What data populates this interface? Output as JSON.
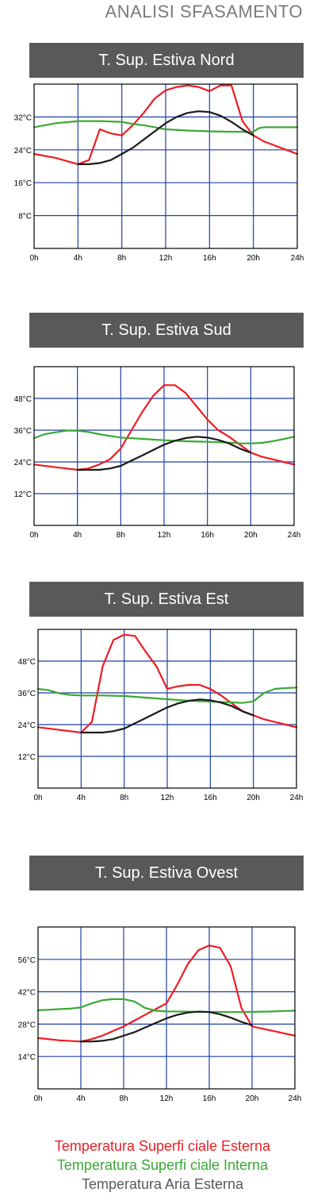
{
  "page_title": "ANALISI SFASAMENTO",
  "colors": {
    "surface_external": "#ee1c24",
    "surface_internal": "#3aa935",
    "air_external": "#1a1a1a",
    "grid": "#1f3fa8",
    "header_bg": "#58595b"
  },
  "chart_data": [
    {
      "type": "line",
      "title": "T. Sup. Estiva Nord",
      "x_tick_labels": [
        "0h",
        "4h",
        "8h",
        "12h",
        "16h",
        "20h",
        "24h"
      ],
      "xlim": [
        0,
        24
      ],
      "ylim": [
        0,
        40
      ],
      "y_tick_values": [
        8,
        16,
        24,
        32
      ],
      "y_tick_labels": [
        "8°C",
        "16°C",
        "24°C",
        "32°C"
      ],
      "grid": true,
      "series": [
        {
          "color": "#ee1c24",
          "x": [
            0,
            2,
            4,
            5,
            6,
            7,
            8,
            9,
            10,
            11,
            12,
            13,
            14,
            15,
            16,
            17,
            18,
            19,
            20,
            21,
            22,
            23,
            24
          ],
          "y": [
            23,
            22,
            20.5,
            21.5,
            29,
            28,
            27.5,
            30,
            33,
            36.5,
            38.5,
            39.3,
            39.7,
            39.3,
            38.3,
            39.7,
            39.7,
            31,
            27.5,
            26,
            25,
            24,
            23
          ]
        },
        {
          "color": "#3aa935",
          "x": [
            0,
            2,
            4,
            6,
            8,
            9,
            10,
            11,
            12,
            14,
            16,
            18,
            19,
            19.5,
            20,
            20.5,
            21,
            22,
            24
          ],
          "y": [
            29.5,
            30.5,
            31,
            31,
            30.8,
            30.3,
            30,
            29.5,
            29,
            28.7,
            28.5,
            28.4,
            28.4,
            28.3,
            28.4,
            29.3,
            29.5,
            29.5,
            29.5
          ]
        },
        {
          "color": "#1a1a1a",
          "x": [
            4,
            5,
            6,
            7,
            8,
            9,
            10,
            11,
            12,
            13,
            14,
            15,
            16,
            17,
            18,
            19,
            20
          ],
          "y": [
            20.5,
            20.5,
            20.8,
            21.5,
            23,
            24.5,
            26.5,
            28.5,
            30.5,
            32,
            33,
            33.4,
            33.2,
            32.3,
            30.8,
            29,
            27.5
          ]
        }
      ]
    },
    {
      "type": "line",
      "title": "T. Sup. Estiva Sud",
      "x_tick_labels": [
        "0h",
        "4h",
        "8h",
        "12h",
        "16h",
        "20h",
        "24h"
      ],
      "xlim": [
        0,
        24
      ],
      "ylim": [
        0,
        60
      ],
      "y_tick_values": [
        12,
        24,
        36,
        48
      ],
      "y_tick_labels": [
        "12°C",
        "24°C",
        "36°C",
        "48°C"
      ],
      "grid": true,
      "series": [
        {
          "color": "#ee1c24",
          "x": [
            0,
            2,
            4,
            5,
            6,
            7,
            8,
            9,
            10,
            11,
            12,
            13,
            14,
            15,
            16,
            17,
            18,
            19,
            20,
            21,
            22,
            23,
            24
          ],
          "y": [
            23,
            22,
            21,
            21.5,
            23,
            25,
            29,
            36,
            43,
            49,
            53,
            53,
            50,
            45,
            40,
            36,
            33.5,
            30.5,
            27.5,
            26,
            25,
            24,
            23
          ]
        },
        {
          "color": "#3aa935",
          "x": [
            0,
            1,
            2,
            3,
            4,
            5,
            6,
            7,
            8,
            10,
            12,
            14,
            16,
            18,
            19,
            20,
            21,
            22,
            23,
            24
          ],
          "y": [
            33,
            34.5,
            35.2,
            35.8,
            35.8,
            35.3,
            34.5,
            33.8,
            33.2,
            32.7,
            32.2,
            31.8,
            31.6,
            31.3,
            31,
            31,
            31.2,
            31.8,
            32.6,
            33.5
          ]
        },
        {
          "color": "#1a1a1a",
          "x": [
            4,
            5,
            6,
            7,
            8,
            9,
            10,
            11,
            12,
            13,
            14,
            15,
            16,
            17,
            18,
            19,
            20
          ],
          "y": [
            21,
            21,
            21,
            21.5,
            22.5,
            24.5,
            26.5,
            28.5,
            30.5,
            32,
            33,
            33.5,
            33.2,
            32.3,
            31,
            29,
            27.5
          ]
        }
      ]
    },
    {
      "type": "line",
      "title": "T. Sup. Estiva Est",
      "x_tick_labels": [
        "0h",
        "4h",
        "8h",
        "12h",
        "16h",
        "20h",
        "24h"
      ],
      "xlim": [
        0,
        24
      ],
      "ylim": [
        0,
        60
      ],
      "y_tick_values": [
        12,
        24,
        36,
        48
      ],
      "y_tick_labels": [
        "12°C",
        "24°C",
        "36°C",
        "48°C"
      ],
      "grid": true,
      "series": [
        {
          "color": "#ee1c24",
          "x": [
            0,
            2,
            4,
            5,
            6,
            7,
            8,
            9,
            10,
            11,
            12,
            13,
            14,
            15,
            16,
            17,
            18,
            19,
            20,
            21,
            22,
            23,
            24
          ],
          "y": [
            23,
            22,
            21,
            25,
            46,
            56,
            58,
            57.5,
            51.5,
            46,
            37.5,
            38.5,
            39,
            39,
            37.5,
            35,
            32,
            29,
            27.5,
            26,
            25,
            24,
            23
          ]
        },
        {
          "color": "#3aa935",
          "x": [
            0,
            1,
            2,
            3,
            4,
            6,
            8,
            10,
            12,
            14,
            16,
            18,
            19,
            20,
            21,
            22,
            23,
            24
          ],
          "y": [
            37.5,
            37,
            35.8,
            35.2,
            35,
            35,
            34.8,
            34.2,
            33.6,
            33,
            32.7,
            32.4,
            32.2,
            32.8,
            36,
            37.5,
            37.8,
            38
          ]
        },
        {
          "color": "#1a1a1a",
          "x": [
            4,
            5,
            6,
            7,
            8,
            9,
            10,
            11,
            12,
            13,
            14,
            15,
            16,
            17,
            18,
            19,
            20
          ],
          "y": [
            21,
            21,
            21,
            21.5,
            22.5,
            24.5,
            26.5,
            28.5,
            30.5,
            32,
            33,
            33.5,
            33.2,
            32.3,
            31,
            29,
            27.5
          ]
        }
      ]
    },
    {
      "type": "line",
      "title": "T. Sup. Estiva Ovest",
      "x_tick_labels": [
        "0h",
        "4h",
        "8h",
        "12h",
        "16h",
        "20h",
        "24h"
      ],
      "xlim": [
        0,
        24
      ],
      "ylim": [
        0,
        70
      ],
      "y_tick_values": [
        14,
        28,
        42,
        56
      ],
      "y_tick_labels": [
        "14°C",
        "28°C",
        "42°C",
        "56°C"
      ],
      "grid": true,
      "series": [
        {
          "color": "#ee1c24",
          "x": [
            0,
            2,
            4,
            5,
            6,
            7,
            8,
            9,
            10,
            11,
            12,
            13,
            14,
            15,
            16,
            17,
            18,
            19,
            20,
            21,
            22,
            23,
            24
          ],
          "y": [
            22,
            21,
            20.5,
            21.5,
            23,
            25,
            27,
            29.5,
            32,
            34.5,
            37,
            45,
            54,
            60,
            62,
            61,
            53,
            35,
            27,
            26,
            25,
            24,
            23
          ]
        },
        {
          "color": "#3aa935",
          "x": [
            0,
            1,
            2,
            3,
            4,
            5,
            6,
            7,
            8,
            9,
            10,
            11,
            12,
            14,
            16,
            18,
            20,
            22,
            23,
            24
          ],
          "y": [
            34,
            34.2,
            34.5,
            34.7,
            35.2,
            37,
            38.3,
            38.8,
            38.8,
            37.8,
            35,
            33.8,
            33.5,
            33.4,
            33.3,
            33.2,
            33.3,
            33.5,
            33.7,
            33.8
          ]
        },
        {
          "color": "#1a1a1a",
          "x": [
            4,
            5,
            6,
            7,
            8,
            9,
            10,
            11,
            12,
            13,
            14,
            15,
            16,
            17,
            18,
            19,
            20
          ],
          "y": [
            20.5,
            20.5,
            20.8,
            21.5,
            23,
            24.5,
            26.5,
            28.5,
            30.5,
            32,
            33,
            33.4,
            33.2,
            32.3,
            30.8,
            29,
            27.5
          ]
        }
      ]
    }
  ],
  "legend": [
    {
      "label": "Temperatura Superfi ciale Esterna",
      "color": "#ee1c24"
    },
    {
      "label": "Temperatura Superfi ciale Interna",
      "color": "#3aa935"
    },
    {
      "label": "Temperatura Aria Esterna",
      "color": "#58595b"
    }
  ]
}
